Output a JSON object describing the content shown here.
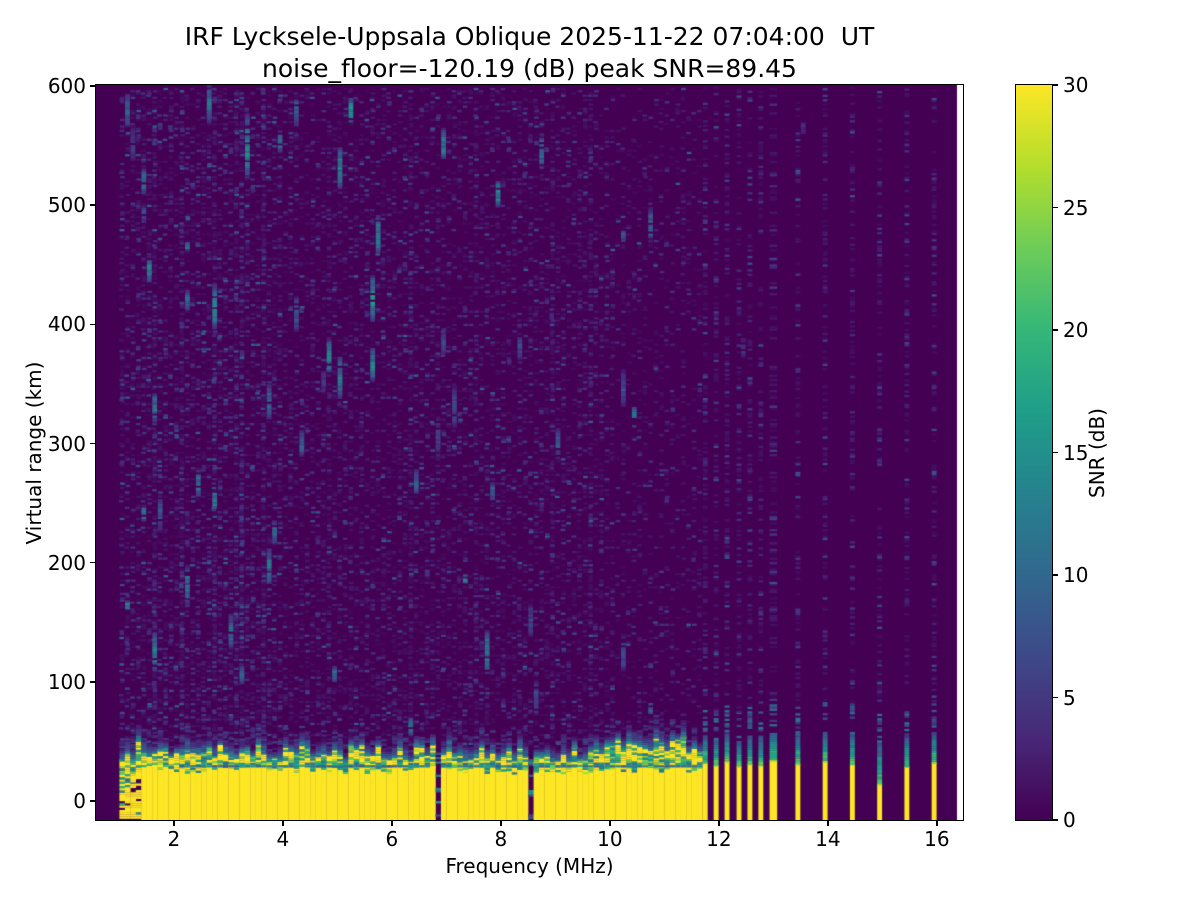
{
  "page": {
    "background": "#ffffff"
  },
  "chart_data": {
    "type": "heatmap",
    "title": "IRF Lycksele-Uppsala Oblique 2025-11-22 07:04:00  UT",
    "subtitle": "noise_floor=-120.19 (dB) peak SNR=89.45",
    "xlabel": "Frequency (MHz)",
    "ylabel": "Virtual range (km)",
    "colorbar_label": "SNR (dB)",
    "noise_floor_db": -120.19,
    "peak_snr_db": 89.45,
    "station": "IRF Lycksele-Uppsala Oblique",
    "timestamp_ut": "2025-11-22 07:04:00",
    "xlim": [
      0.57,
      16.48
    ],
    "ylim": [
      -15.95,
      600.85
    ],
    "snr_range": [
      0,
      30
    ],
    "xticks": [
      2,
      4,
      6,
      8,
      10,
      12,
      14,
      16
    ],
    "yticks": [
      0,
      100,
      200,
      300,
      400,
      500,
      600
    ],
    "colorbar_ticks": [
      0,
      5,
      10,
      15,
      20,
      25,
      30
    ],
    "colormap": "viridis",
    "colormap_stops": [
      "#440154",
      "#482878",
      "#3e4989",
      "#31688e",
      "#26828e",
      "#1f9e89",
      "#35b779",
      "#6dcd59",
      "#b4de2c",
      "#fde725"
    ],
    "figure_facecolor": "#ffffff",
    "features": {
      "continuous_band": {
        "f_start": 1.0,
        "f_end": 11.62,
        "step": 0.1,
        "solid_top_km": [
          23,
          30
        ],
        "patch_depth_km": [
          8,
          20
        ],
        "fade_depth_km": [
          5,
          13
        ],
        "ragged_below_mhz": 1.4,
        "notch_km": 30,
        "notch_min_mhz": 2.1,
        "cap_bump_mhz": 11.0,
        "cap_bump_km": 8
      },
      "band_gaps_mhz": [
        6.8,
        8.5
      ],
      "discrete_bars": [
        {
          "f": 11.75,
          "w": 0.09,
          "yellow_top": 32,
          "cap_top": 55
        },
        {
          "f": 11.95,
          "w": 0.09,
          "yellow_top": 30,
          "cap_top": 52
        },
        {
          "f": 12.15,
          "w": 0.09,
          "yellow_top": 33,
          "cap_top": 57
        },
        {
          "f": 12.37,
          "w": 0.09,
          "yellow_top": 29,
          "cap_top": 50
        },
        {
          "f": 12.57,
          "w": 0.09,
          "yellow_top": 31,
          "cap_top": 54
        },
        {
          "f": 12.77,
          "w": 0.09,
          "yellow_top": 30,
          "cap_top": 52
        },
        {
          "f": 13.0,
          "w": 0.14,
          "yellow_top": 34,
          "cap_top": 58
        },
        {
          "f": 13.45,
          "w": 0.09,
          "yellow_top": 31,
          "cap_top": 56
        },
        {
          "f": 13.95,
          "w": 0.09,
          "yellow_top": 33,
          "cap_top": 58
        },
        {
          "f": 14.45,
          "w": 0.09,
          "yellow_top": 31,
          "cap_top": 57
        },
        {
          "f": 14.95,
          "w": 0.09,
          "yellow_top": 14,
          "cap_top": 50
        },
        {
          "f": 15.45,
          "w": 0.09,
          "yellow_top": 29,
          "cap_top": 54
        },
        {
          "f": 15.95,
          "w": 0.09,
          "yellow_top": 32,
          "cap_top": 57
        }
      ],
      "prominent_streaks": [
        {
          "f": 3.25,
          "km": 550,
          "len": 55,
          "peak": 17
        },
        {
          "f": 2.6,
          "km": 580,
          "len": 24,
          "peak": 13
        },
        {
          "f": 1.55,
          "km": 330,
          "len": 26,
          "peak": 14
        },
        {
          "f": 1.6,
          "km": 125,
          "len": 34,
          "peak": 15
        },
        {
          "f": 2.2,
          "km": 180,
          "len": 36,
          "peak": 14
        },
        {
          "f": 2.15,
          "km": 420,
          "len": 18,
          "peak": 12
        },
        {
          "f": 3.8,
          "km": 225,
          "len": 22,
          "peak": 12
        },
        {
          "f": 4.3,
          "km": 300,
          "len": 24,
          "peak": 11
        },
        {
          "f": 6.4,
          "km": 268,
          "len": 22,
          "peak": 12
        },
        {
          "f": 8.97,
          "km": 300,
          "len": 28,
          "peak": 10
        },
        {
          "f": 6.3,
          "km": 62,
          "len": 16,
          "peak": 15
        },
        {
          "f": 1.35,
          "km": 520,
          "len": 22,
          "peak": 13
        },
        {
          "f": 12.4,
          "km": 380,
          "len": 18,
          "peak": 6
        },
        {
          "f": 13.5,
          "km": 565,
          "len": 12,
          "peak": 5
        }
      ],
      "mesh_right_edge_mhz": 16.37
    },
    "render": {
      "seed": 20251122,
      "row_km": 1.85,
      "speckle": {
        "faint_density": [
          0.4,
          0.32,
          0.18
        ],
        "faint_scale": 1.1,
        "faint_max": 4.2,
        "bright_density": [
          0.1,
          0.05,
          0.02
        ],
        "bright_scale": 2.0,
        "bright_min": 3.5,
        "bright_max": 9,
        "height_falloff": 0.3
      },
      "hot_columns": [
        1.6,
        2.1,
        2.7,
        3.15,
        3.6,
        4.8,
        6.3,
        7.5,
        8.9,
        9.6
      ],
      "hot_boost": 1.8,
      "clusters": {
        "count": 48,
        "peak_min": 6,
        "peak_max": 18,
        "len_min_km": 6,
        "len_max_km": 40
      }
    }
  }
}
